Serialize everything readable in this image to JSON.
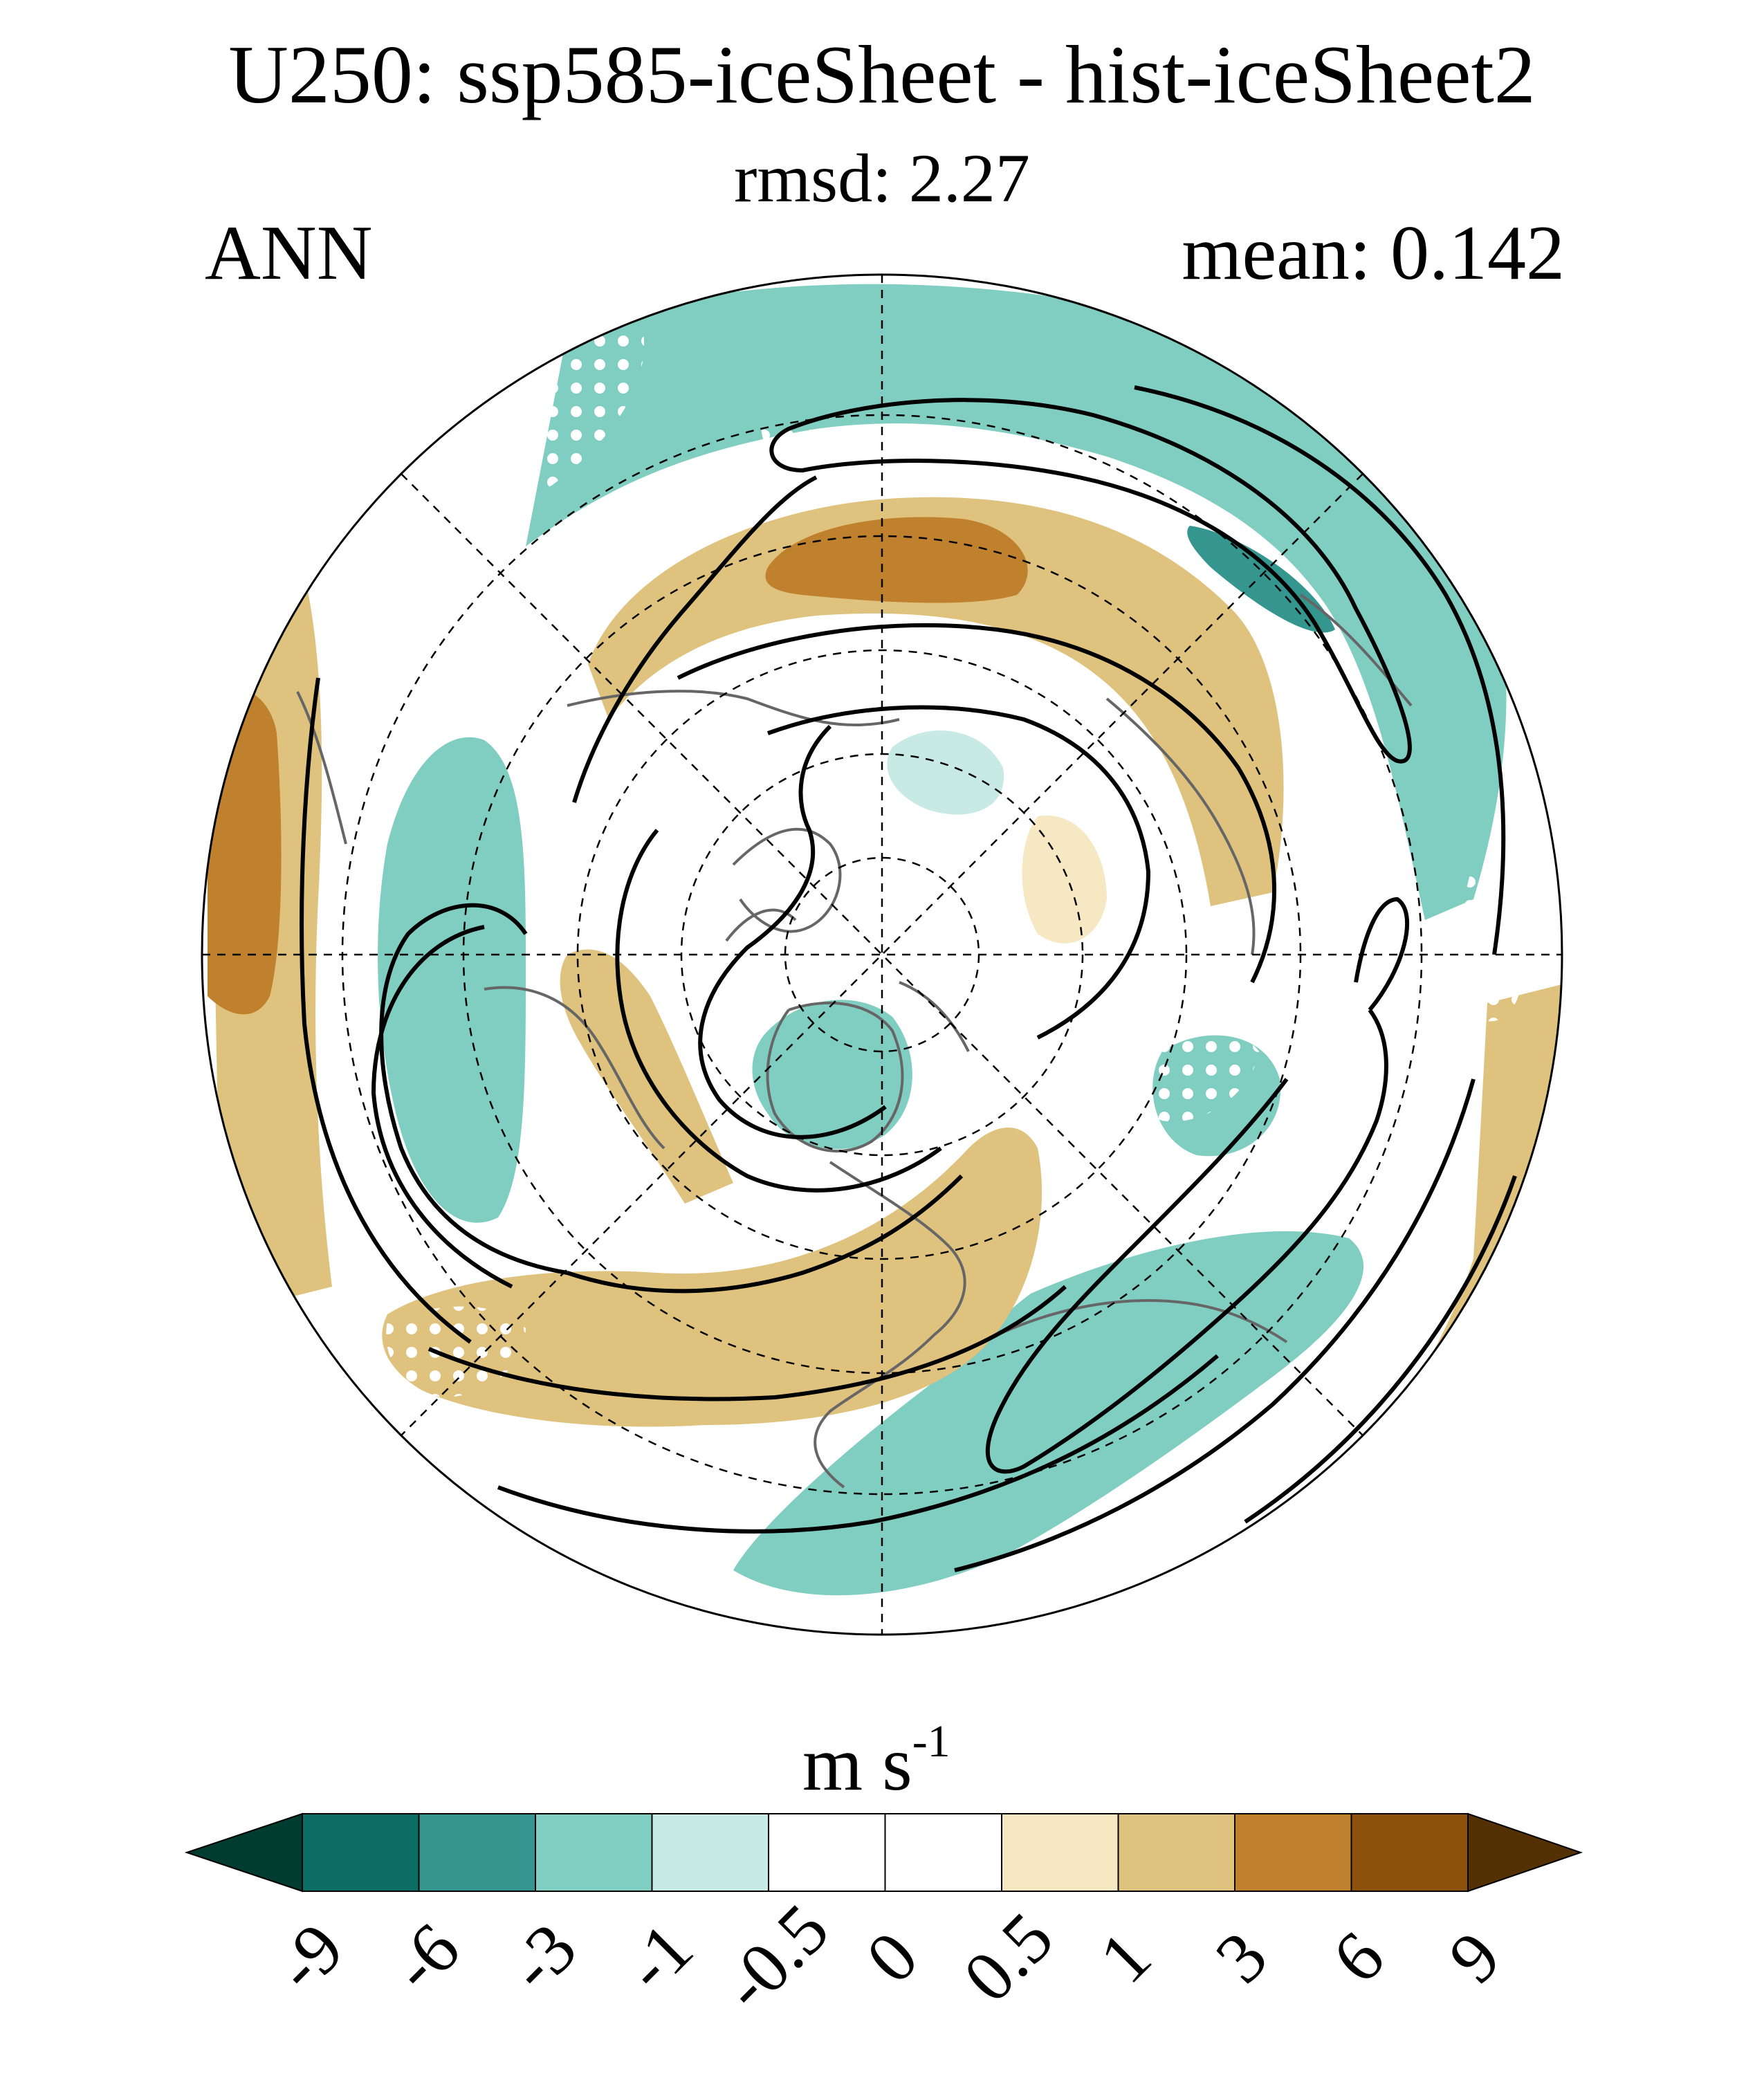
{
  "header": {
    "title": "U250: ssp585-iceSheet - hist-iceSheet2",
    "subtitle": "rmsd: 2.27",
    "left_label": "ANN",
    "right_label": "mean: 0.142"
  },
  "colorbar": {
    "units_base": "m s",
    "units_exponent": "-1",
    "levels": [
      "-9",
      "-6",
      "-3",
      "-1",
      "-0.5",
      "0",
      "0.5",
      "1",
      "3",
      "6",
      "9"
    ],
    "colors": [
      "#013c30",
      "#0c6e64",
      "#35968f",
      "#80cdc1",
      "#c7eae5",
      "#ffffff",
      "#ffffff",
      "#f6e8c3",
      "#dfc27d",
      "#bf812d",
      "#8c510a",
      "#543005"
    ]
  },
  "map": {
    "projection": "north-polar-stereographic",
    "stippling": "white dots mark significance",
    "contour_color": "#000000",
    "coastline_color": "#666666"
  }
}
